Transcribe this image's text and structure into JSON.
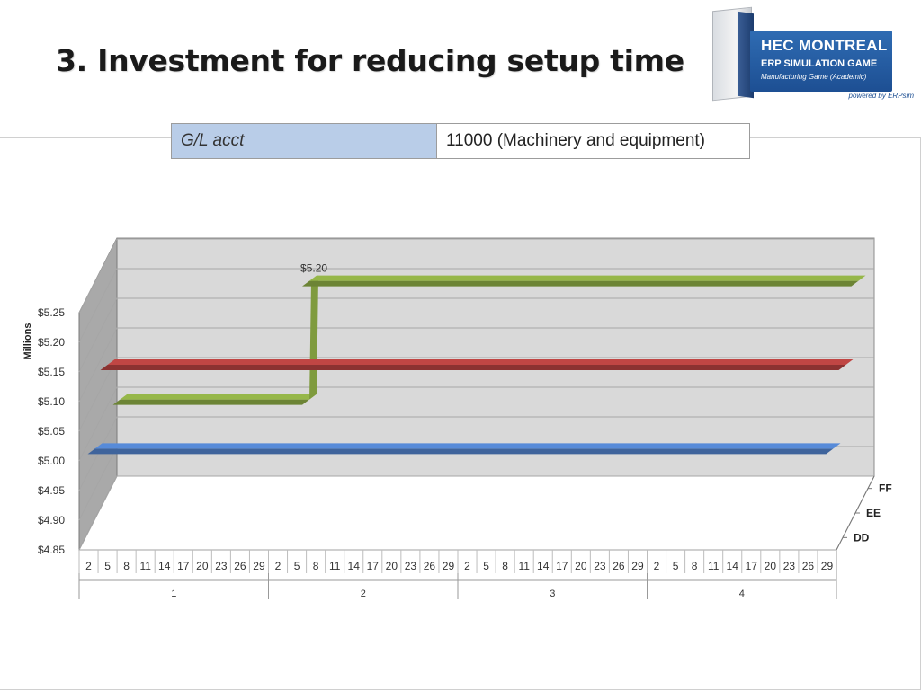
{
  "slide": {
    "title": "3. Investment for reducing setup time"
  },
  "logo": {
    "line1": "HEC MONTREAL",
    "line2": "ERP SIMULATION GAME",
    "line3": "Manufacturing Game (Academic)",
    "powered_by": "powered by ERPsim"
  },
  "gl_table": {
    "key": "G/L acct",
    "value": "11000 (Machinery and equipment)"
  },
  "colors": {
    "DD": "#4a76b8",
    "EE": "#a33b3a",
    "FF": "#7f9b3e",
    "wall": "#d9d9d9",
    "grid": "#a6a6a6"
  },
  "chart_data": {
    "type": "line",
    "style": "3d-line",
    "ylabel": "Millions",
    "ylim": [
      4.85,
      5.25
    ],
    "yticks": [
      4.85,
      4.9,
      4.95,
      5.0,
      5.05,
      5.1,
      5.15,
      5.2,
      5.25
    ],
    "ytick_labels": [
      "$4.85",
      "$4.90",
      "$4.95",
      "$5.00",
      "$5.05",
      "$5.10",
      "$5.15",
      "$5.20",
      "$5.25"
    ],
    "x_day_labels": [
      "2",
      "5",
      "8",
      "11",
      "14",
      "17",
      "20",
      "23",
      "26",
      "29"
    ],
    "x_rounds": [
      "1",
      "2",
      "3",
      "4"
    ],
    "series": [
      {
        "name": "DD",
        "start_value": 5.0,
        "end_value": 5.0,
        "step_round": null,
        "step_day": null
      },
      {
        "name": "EE",
        "start_value": 5.1,
        "end_value": 5.1,
        "step_round": null,
        "step_day": null
      },
      {
        "name": "FF",
        "start_value": 5.0,
        "end_value": 5.2,
        "step_round": "2",
        "step_day": "2"
      }
    ],
    "annotations": [
      {
        "series": "FF",
        "text": "$5.20"
      }
    ],
    "grid": true
  }
}
